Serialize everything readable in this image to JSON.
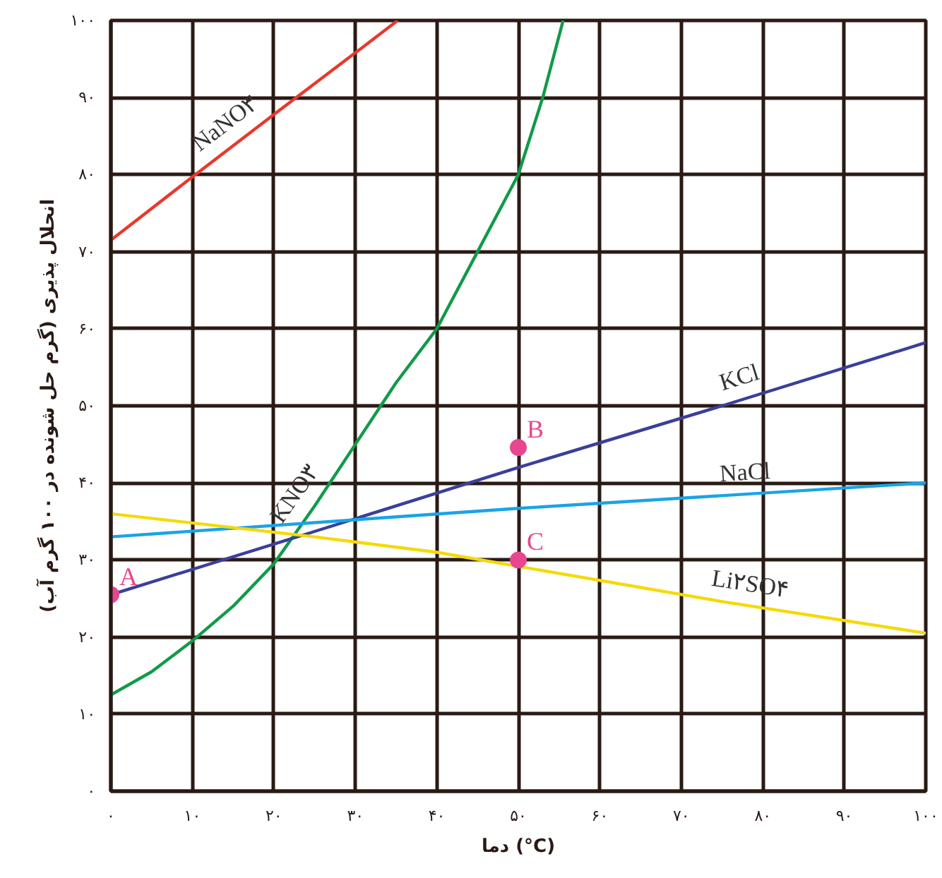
{
  "chart_data": {
    "type": "line",
    "xlabel": "دما (°C)",
    "ylabel": "انحلال پذیری (گرم حل شونده در ۱۰۰ گرم آب)",
    "xlim": [
      0,
      100
    ],
    "ylim": [
      0,
      100
    ],
    "xticks": [
      {
        "value": 0,
        "label": "۰"
      },
      {
        "value": 10,
        "label": "۱۰"
      },
      {
        "value": 20,
        "label": "۲۰"
      },
      {
        "value": 30,
        "label": "۳۰"
      },
      {
        "value": 40,
        "label": "۴۰"
      },
      {
        "value": 50,
        "label": "۵۰"
      },
      {
        "value": 60,
        "label": "۶۰"
      },
      {
        "value": 70,
        "label": "۷۰"
      },
      {
        "value": 80,
        "label": "۸۰"
      },
      {
        "value": 90,
        "label": "۹۰"
      },
      {
        "value": 100,
        "label": "۱۰۰"
      }
    ],
    "yticks": [
      {
        "value": 0,
        "label": "۰"
      },
      {
        "value": 10,
        "label": "۱۰"
      },
      {
        "value": 20,
        "label": "۲۰"
      },
      {
        "value": 30,
        "label": "۳۰"
      },
      {
        "value": 40,
        "label": "۴۰"
      },
      {
        "value": 50,
        "label": "۵۰"
      },
      {
        "value": 60,
        "label": "۶۰"
      },
      {
        "value": 70,
        "label": "۷۰"
      },
      {
        "value": 80,
        "label": "۸۰"
      },
      {
        "value": 90,
        "label": "۹۰"
      },
      {
        "value": 100,
        "label": "۱۰۰"
      }
    ],
    "grid": true,
    "legend": false,
    "line_style": "solid",
    "series": [
      {
        "name": "NaNO۳",
        "color": "#e8392b",
        "x": [
          0,
          10,
          20,
          30,
          35.2
        ],
        "values": [
          71.5,
          79.7,
          87.8,
          95.8,
          100
        ]
      },
      {
        "name": "KNO۳",
        "color": "#119a48",
        "x": [
          0,
          5,
          10,
          15,
          20,
          25,
          30,
          35,
          40,
          45,
          50,
          53,
          55.5
        ],
        "values": [
          12.5,
          15.5,
          19.5,
          24,
          29.5,
          37,
          45,
          53,
          60,
          70,
          80,
          90,
          100
        ]
      },
      {
        "name": "KCl",
        "color": "#3b3f9a",
        "x": [
          0,
          25,
          50,
          75,
          100
        ],
        "values": [
          25.5,
          33.7,
          42,
          50,
          58.2
        ]
      },
      {
        "name": "NaCl",
        "color": "#1aa3e8",
        "x": [
          0,
          50,
          100
        ],
        "values": [
          33,
          36.7,
          40
        ]
      },
      {
        "name": "Li۲SO۴",
        "color": "#f5d90a",
        "x": [
          0,
          25,
          40,
          75,
          100
        ],
        "values": [
          36,
          33,
          31,
          24.6,
          20.5
        ]
      },
      {
        "type": "scatter",
        "name": "A",
        "color": "#e8468f",
        "marker": "circle",
        "x": [
          0
        ],
        "values": [
          25.5
        ]
      },
      {
        "type": "scatter",
        "name": "B",
        "color": "#e8468f",
        "marker": "circle",
        "x": [
          50
        ],
        "values": [
          44.6
        ]
      },
      {
        "type": "scatter",
        "name": "C",
        "color": "#e8468f",
        "marker": "circle",
        "x": [
          50
        ],
        "values": [
          30
        ]
      }
    ]
  }
}
